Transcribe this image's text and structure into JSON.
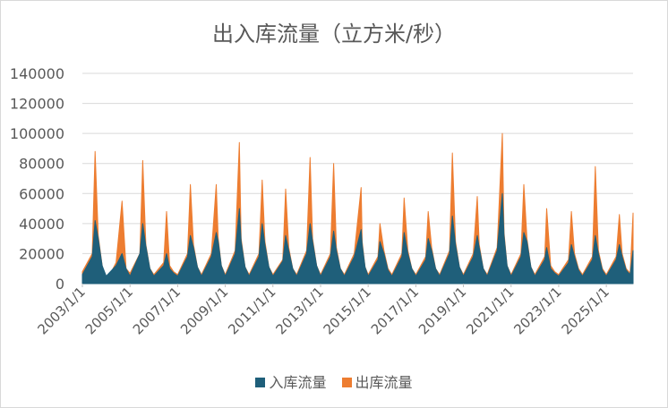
{
  "chart_data": {
    "type": "area",
    "title": "出入库流量（立方米/秒）",
    "xlabel": "",
    "ylabel": "",
    "ylim": [
      0,
      140000
    ],
    "y_ticks": [
      "0",
      "20000",
      "40000",
      "60000",
      "80000",
      "100000",
      "120000",
      "140000"
    ],
    "x_range": [
      "2003/1/1",
      "2026/2/15"
    ],
    "x_ticks": [
      "2003/1/1",
      "2005/1/1",
      "2007/1/1",
      "2009/1/1",
      "2011/1/1",
      "2013/1/1",
      "2015/1/1",
      "2017/1/1",
      "2019/1/1",
      "2021/1/1",
      "2023/1/1",
      "2025/1/1"
    ],
    "grid": true,
    "legend_position": "bottom",
    "stacked": false,
    "sample_interval": "approx. monthly average, peak flood value shown at each annual spike",
    "series": [
      {
        "name": "入库流量",
        "color": "#1f5f7a",
        "points": [
          [
            "2003/1/1",
            6000
          ],
          [
            "2003/6/1",
            18000
          ],
          [
            "2003/7/15",
            42000
          ],
          [
            "2003/9/1",
            30000
          ],
          [
            "2003/11/1",
            12000
          ],
          [
            "2004/1/1",
            5000
          ],
          [
            "2004/6/1",
            12000
          ],
          [
            "2004/9/1",
            20000
          ],
          [
            "2004/11/1",
            10000
          ],
          [
            "2005/1/1",
            5000
          ],
          [
            "2005/6/1",
            20000
          ],
          [
            "2005/7/15",
            40000
          ],
          [
            "2005/9/1",
            25000
          ],
          [
            "2005/11/1",
            10000
          ],
          [
            "2006/1/1",
            5000
          ],
          [
            "2006/6/1",
            12000
          ],
          [
            "2006/7/15",
            20000
          ],
          [
            "2006/9/1",
            10000
          ],
          [
            "2006/11/1",
            7000
          ],
          [
            "2007/1/1",
            5000
          ],
          [
            "2007/6/1",
            18000
          ],
          [
            "2007/7/15",
            32000
          ],
          [
            "2007/9/1",
            24000
          ],
          [
            "2007/11/1",
            11000
          ],
          [
            "2008/1/1",
            5000
          ],
          [
            "2008/6/1",
            18000
          ],
          [
            "2008/8/15",
            34000
          ],
          [
            "2008/9/15",
            28000
          ],
          [
            "2008/11/1",
            12000
          ],
          [
            "2009/1/1",
            5000
          ],
          [
            "2009/6/1",
            20000
          ],
          [
            "2009/8/5",
            50000
          ],
          [
            "2009/9/1",
            28000
          ],
          [
            "2009/11/1",
            11000
          ],
          [
            "2010/1/1",
            5000
          ],
          [
            "2010/6/1",
            18000
          ],
          [
            "2010/7/20",
            40000
          ],
          [
            "2010/9/1",
            26000
          ],
          [
            "2010/11/1",
            11000
          ],
          [
            "2011/1/1",
            5000
          ],
          [
            "2011/6/1",
            15000
          ],
          [
            "2011/7/15",
            32000
          ],
          [
            "2011/9/1",
            22000
          ],
          [
            "2011/11/1",
            10000
          ],
          [
            "2012/1/1",
            5000
          ],
          [
            "2012/6/1",
            20000
          ],
          [
            "2012/7/25",
            40000
          ],
          [
            "2012/9/1",
            28000
          ],
          [
            "2012/11/1",
            12000
          ],
          [
            "2013/1/1",
            5000
          ],
          [
            "2013/6/1",
            18000
          ],
          [
            "2013/7/20",
            35000
          ],
          [
            "2013/9/1",
            22000
          ],
          [
            "2013/11/1",
            10000
          ],
          [
            "2014/1/1",
            5000
          ],
          [
            "2014/6/1",
            18000
          ],
          [
            "2014/9/15",
            36000
          ],
          [
            "2014/10/1",
            26000
          ],
          [
            "2014/11/15",
            11000
          ],
          [
            "2015/1/1",
            5000
          ],
          [
            "2015/6/1",
            16000
          ],
          [
            "2015/7/1",
            28000
          ],
          [
            "2015/9/1",
            20000
          ],
          [
            "2015/11/1",
            9000
          ],
          [
            "2016/1/1",
            5000
          ],
          [
            "2016/6/1",
            18000
          ],
          [
            "2016/7/5",
            34000
          ],
          [
            "2016/9/1",
            20000
          ],
          [
            "2016/11/1",
            10000
          ],
          [
            "2017/1/1",
            5000
          ],
          [
            "2017/6/1",
            16000
          ],
          [
            "2017/7/10",
            30000
          ],
          [
            "2017/9/1",
            22000
          ],
          [
            "2017/11/1",
            10000
          ],
          [
            "2018/1/1",
            5000
          ],
          [
            "2018/6/1",
            20000
          ],
          [
            "2018/7/15",
            45000
          ],
          [
            "2018/9/1",
            26000
          ],
          [
            "2018/11/1",
            11000
          ],
          [
            "2019/1/1",
            5000
          ],
          [
            "2019/6/1",
            18000
          ],
          [
            "2019/8/1",
            32000
          ],
          [
            "2019/9/1",
            24000
          ],
          [
            "2019/11/1",
            10000
          ],
          [
            "2020/1/1",
            5000
          ],
          [
            "2020/6/1",
            22000
          ],
          [
            "2020/8/20",
            60000
          ],
          [
            "2020/9/15",
            32000
          ],
          [
            "2020/11/1",
            12000
          ],
          [
            "2021/1/1",
            5000
          ],
          [
            "2021/6/1",
            18000
          ],
          [
            "2021/7/15",
            34000
          ],
          [
            "2021/9/1",
            28000
          ],
          [
            "2021/11/1",
            11000
          ],
          [
            "2022/1/1",
            5000
          ],
          [
            "2022/6/1",
            16000
          ],
          [
            "2022/7/1",
            24000
          ],
          [
            "2022/9/1",
            10000
          ],
          [
            "2022/11/1",
            7000
          ],
          [
            "2023/1/1",
            5000
          ],
          [
            "2023/6/1",
            14000
          ],
          [
            "2023/7/15",
            26000
          ],
          [
            "2023/9/1",
            18000
          ],
          [
            "2023/11/1",
            9000
          ],
          [
            "2024/1/1",
            5000
          ],
          [
            "2024/6/1",
            16000
          ],
          [
            "2024/7/15",
            32000
          ],
          [
            "2024/9/1",
            20000
          ],
          [
            "2024/11/1",
            9000
          ],
          [
            "2025/1/1",
            5000
          ],
          [
            "2025/6/1",
            16000
          ],
          [
            "2025/7/20",
            26000
          ],
          [
            "2025/9/1",
            18000
          ],
          [
            "2025/11/1",
            9000
          ],
          [
            "2026/1/1",
            6000
          ],
          [
            "2026/2/15",
            22000
          ]
        ]
      },
      {
        "name": "出库流量",
        "color": "#ed7d31",
        "points": [
          [
            "2003/1/1",
            8000
          ],
          [
            "2003/6/1",
            20000
          ],
          [
            "2003/7/15",
            88000
          ],
          [
            "2003/9/1",
            32000
          ],
          [
            "2003/11/1",
            12000
          ],
          [
            "2004/1/1",
            1000
          ],
          [
            "2004/6/1",
            14000
          ],
          [
            "2004/9/1",
            55000
          ],
          [
            "2004/11/1",
            10000
          ],
          [
            "2005/1/1",
            7000
          ],
          [
            "2005/6/1",
            20000
          ],
          [
            "2005/7/15",
            82000
          ],
          [
            "2005/9/1",
            26000
          ],
          [
            "2005/11/1",
            10000
          ],
          [
            "2006/1/1",
            6000
          ],
          [
            "2006/6/1",
            14000
          ],
          [
            "2006/7/15",
            48000
          ],
          [
            "2006/9/1",
            12000
          ],
          [
            "2006/11/1",
            8000
          ],
          [
            "2007/1/1",
            6000
          ],
          [
            "2007/6/1",
            20000
          ],
          [
            "2007/7/15",
            66000
          ],
          [
            "2007/9/1",
            26000
          ],
          [
            "2007/11/1",
            11000
          ],
          [
            "2008/1/1",
            6000
          ],
          [
            "2008/6/1",
            20000
          ],
          [
            "2008/8/15",
            66000
          ],
          [
            "2008/9/15",
            30000
          ],
          [
            "2008/11/1",
            12000
          ],
          [
            "2009/1/1",
            6000
          ],
          [
            "2009/6/1",
            22000
          ],
          [
            "2009/8/5",
            94000
          ],
          [
            "2009/9/1",
            30000
          ],
          [
            "2009/11/1",
            11000
          ],
          [
            "2010/1/1",
            6000
          ],
          [
            "2010/6/1",
            20000
          ],
          [
            "2010/7/20",
            69000
          ],
          [
            "2010/9/1",
            28000
          ],
          [
            "2010/11/1",
            11000
          ],
          [
            "2011/1/1",
            6000
          ],
          [
            "2011/6/1",
            16000
          ],
          [
            "2011/7/15",
            63000
          ],
          [
            "2011/9/1",
            24000
          ],
          [
            "2011/11/1",
            10000
          ],
          [
            "2012/1/1",
            6000
          ],
          [
            "2012/6/1",
            22000
          ],
          [
            "2012/7/25",
            84000
          ],
          [
            "2012/9/1",
            30000
          ],
          [
            "2012/11/1",
            12000
          ],
          [
            "2013/1/1",
            6000
          ],
          [
            "2013/6/1",
            20000
          ],
          [
            "2013/7/20",
            80000
          ],
          [
            "2013/9/1",
            24000
          ],
          [
            "2013/11/1",
            10000
          ],
          [
            "2014/1/1",
            6000
          ],
          [
            "2014/6/1",
            20000
          ],
          [
            "2014/9/15",
            64000
          ],
          [
            "2014/10/1",
            28000
          ],
          [
            "2014/11/15",
            11000
          ],
          [
            "2015/1/1",
            6000
          ],
          [
            "2015/6/1",
            18000
          ],
          [
            "2015/7/1",
            40000
          ],
          [
            "2015/9/1",
            22000
          ],
          [
            "2015/11/1",
            10000
          ],
          [
            "2016/1/1",
            6000
          ],
          [
            "2016/6/1",
            20000
          ],
          [
            "2016/7/5",
            57000
          ],
          [
            "2016/9/1",
            22000
          ],
          [
            "2016/11/1",
            10000
          ],
          [
            "2017/1/1",
            6000
          ],
          [
            "2017/6/1",
            18000
          ],
          [
            "2017/7/10",
            48000
          ],
          [
            "2017/9/1",
            24000
          ],
          [
            "2017/11/1",
            10000
          ],
          [
            "2018/1/1",
            6000
          ],
          [
            "2018/6/1",
            22000
          ],
          [
            "2018/7/15",
            87000
          ],
          [
            "2018/9/1",
            28000
          ],
          [
            "2018/11/1",
            11000
          ],
          [
            "2019/1/1",
            6000
          ],
          [
            "2019/6/1",
            20000
          ],
          [
            "2019/8/1",
            58000
          ],
          [
            "2019/9/1",
            26000
          ],
          [
            "2019/11/1",
            10000
          ],
          [
            "2020/1/1",
            6000
          ],
          [
            "2020/6/1",
            24000
          ],
          [
            "2020/8/20",
            100000
          ],
          [
            "2020/9/15",
            34000
          ],
          [
            "2020/11/1",
            12000
          ],
          [
            "2021/1/1",
            6000
          ],
          [
            "2021/6/1",
            20000
          ],
          [
            "2021/7/15",
            66000
          ],
          [
            "2021/9/1",
            30000
          ],
          [
            "2021/11/1",
            11000
          ],
          [
            "2022/1/1",
            6000
          ],
          [
            "2022/6/1",
            18000
          ],
          [
            "2022/7/1",
            50000
          ],
          [
            "2022/9/1",
            12000
          ],
          [
            "2022/11/1",
            8000
          ],
          [
            "2023/1/1",
            6000
          ],
          [
            "2023/6/1",
            16000
          ],
          [
            "2023/7/15",
            48000
          ],
          [
            "2023/9/1",
            20000
          ],
          [
            "2023/11/1",
            10000
          ],
          [
            "2024/1/1",
            6000
          ],
          [
            "2024/6/1",
            18000
          ],
          [
            "2024/7/15",
            78000
          ],
          [
            "2024/9/1",
            22000
          ],
          [
            "2024/11/1",
            10000
          ],
          [
            "2025/1/1",
            6000
          ],
          [
            "2025/6/1",
            18000
          ],
          [
            "2025/7/20",
            46000
          ],
          [
            "2025/9/1",
            20000
          ],
          [
            "2025/11/1",
            10000
          ],
          [
            "2026/1/1",
            7000
          ],
          [
            "2026/2/15",
            47000
          ]
        ]
      }
    ]
  }
}
